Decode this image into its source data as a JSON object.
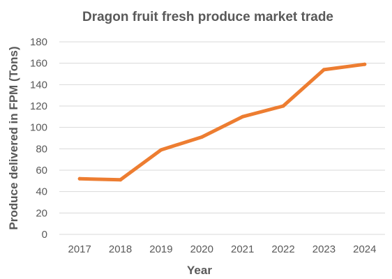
{
  "chart_data": {
    "type": "line",
    "title": "Dragon fruit fresh produce market trade",
    "xlabel": "Year",
    "ylabel": "Produce delivered in FPM (Tons)",
    "categories": [
      "2017",
      "2018",
      "2019",
      "2020",
      "2021",
      "2022",
      "2023",
      "2024"
    ],
    "series": [
      {
        "values": [
          52,
          51,
          79,
          91,
          110,
          120,
          154,
          159
        ]
      }
    ],
    "ylim": [
      0,
      180
    ],
    "yticks": [
      0,
      20,
      40,
      60,
      80,
      100,
      120,
      140,
      160,
      180
    ],
    "grid": true,
    "legend": "none",
    "colors": {
      "series": "#ed7d31",
      "grid": "#d9d9d9",
      "text": "#595959"
    }
  }
}
